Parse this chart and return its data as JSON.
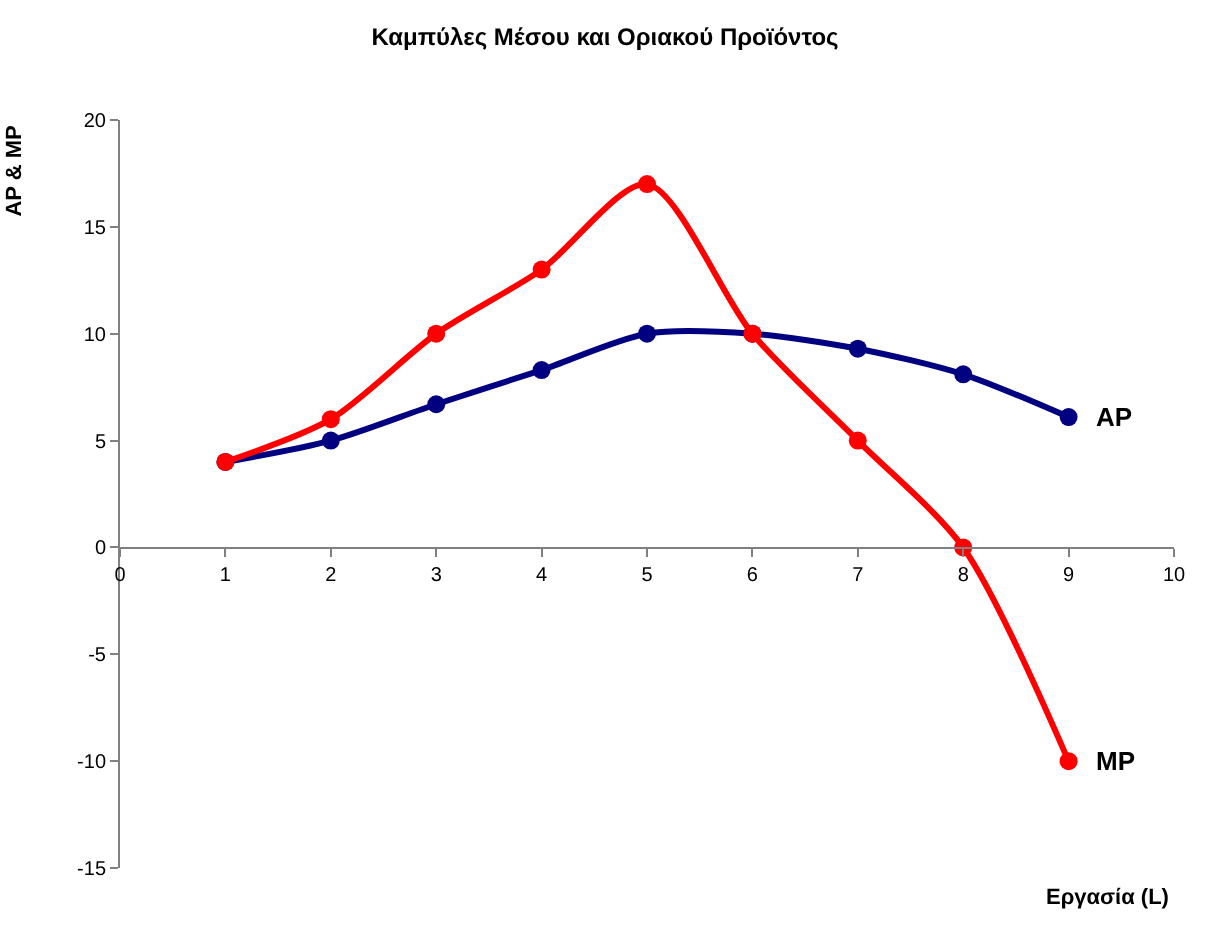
{
  "chart_data": {
    "type": "line",
    "title": "Καμπύλες Μέσου και Οριακού Προϊόντος",
    "xlabel": "Εργασία (L)",
    "ylabel": "AP & MP",
    "x": [
      1,
      2,
      3,
      4,
      5,
      6,
      7,
      8,
      9
    ],
    "series": [
      {
        "name": "AP",
        "color": "#000080",
        "values": [
          4,
          5,
          6.7,
          8.3,
          10,
          10,
          9.3,
          8.1,
          6.1
        ]
      },
      {
        "name": "MP",
        "color": "#ff0000",
        "values": [
          4,
          6,
          10,
          13,
          17,
          10,
          5,
          0,
          -10
        ]
      }
    ],
    "xlim": [
      0,
      10
    ],
    "xticks": [
      0,
      1,
      2,
      3,
      4,
      5,
      6,
      7,
      8,
      9,
      10
    ],
    "ylim": [
      -15,
      20
    ],
    "yticks": [
      -15,
      -10,
      -5,
      0,
      5,
      10,
      15,
      20
    ],
    "legend": false,
    "marker": "circle",
    "line_style": "solid"
  }
}
